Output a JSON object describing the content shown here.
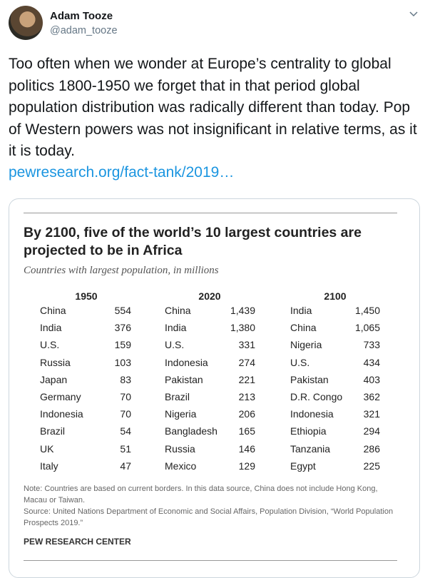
{
  "tweet": {
    "author": "Adam Tooze",
    "handle": "@adam_tooze",
    "text": "Too often when we wonder at Europe’s centrality to global politics 1800-1950 we forget that in that period global population distribution was radically different than today. Pop of Western powers was not insignificant in relative terms, as it it is today.",
    "link": "pewresearch.org/fact-tank/2019…"
  },
  "card": {
    "title": "By 2100, five of the world’s 10 largest countries are projected to be in Africa",
    "subtitle": "Countries with largest population, in millions",
    "columns": [
      {
        "year": "1950",
        "rows": [
          [
            "China",
            "554"
          ],
          [
            "India",
            "376"
          ],
          [
            "U.S.",
            "159"
          ],
          [
            "Russia",
            "103"
          ],
          [
            "Japan",
            "83"
          ],
          [
            "Germany",
            "70"
          ],
          [
            "Indonesia",
            "70"
          ],
          [
            "Brazil",
            "54"
          ],
          [
            "UK",
            "51"
          ],
          [
            "Italy",
            "47"
          ]
        ]
      },
      {
        "year": "2020",
        "rows": [
          [
            "China",
            "1,439"
          ],
          [
            "India",
            "1,380"
          ],
          [
            "U.S.",
            "331"
          ],
          [
            "Indonesia",
            "274"
          ],
          [
            "Pakistan",
            "221"
          ],
          [
            "Brazil",
            "213"
          ],
          [
            "Nigeria",
            "206"
          ],
          [
            "Bangladesh",
            "165"
          ],
          [
            "Russia",
            "146"
          ],
          [
            "Mexico",
            "129"
          ]
        ]
      },
      {
        "year": "2100",
        "rows": [
          [
            "India",
            "1,450"
          ],
          [
            "China",
            "1,065"
          ],
          [
            "Nigeria",
            "733"
          ],
          [
            "U.S.",
            "434"
          ],
          [
            "Pakistan",
            "403"
          ],
          [
            "D.R. Congo",
            "362"
          ],
          [
            "Indonesia",
            "321"
          ],
          [
            "Ethiopia",
            "294"
          ],
          [
            "Tanzania",
            "286"
          ],
          [
            "Egypt",
            "225"
          ]
        ]
      }
    ],
    "note": "Note: Countries are based on current borders. In this data source, China does not include Hong Kong, Macau or Taiwan.",
    "source": "Source: United Nations Department of Economic and Social Affairs, Population Division, “World Population Prospects 2019.”",
    "footer": "PEW RESEARCH CENTER"
  }
}
